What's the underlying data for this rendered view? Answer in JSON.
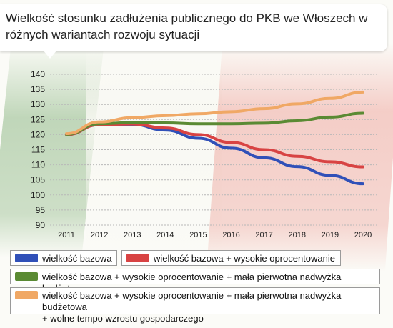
{
  "title": "Wielkość stosunku zadłużenia publicznego do PKB we Włoszech w różnych wariantach rozwoju sytuacji",
  "chart_data": {
    "type": "line",
    "title": "Wielkość stosunku zadłużenia publicznego do PKB we Włoszech w różnych wariantach rozwoju sytuacji",
    "xlabel": "",
    "ylabel": "",
    "x": [
      "2011",
      "2012",
      "2013",
      "2014",
      "2015",
      "2016",
      "2017",
      "2018",
      "2019",
      "2020"
    ],
    "ylim": [
      90,
      140
    ],
    "yticks": [
      90,
      95,
      100,
      105,
      110,
      115,
      120,
      125,
      130,
      135,
      140
    ],
    "grid": true,
    "legend": "bottom",
    "series": [
      {
        "name": "wielkość bazowa",
        "color": "#3050b8",
        "values": [
          120,
          123.3,
          123.4,
          121.5,
          118.8,
          115.5,
          112.3,
          109.4,
          106.5,
          103.7
        ]
      },
      {
        "name": "wielkość bazowa + wysokie oprocentowanie",
        "color": "#d84343",
        "values": [
          120,
          123.3,
          123.5,
          122.2,
          120.0,
          117.4,
          115.0,
          112.8,
          111.0,
          109.3
        ]
      },
      {
        "name": "wielkość bazowa + wysokie oprocentowanie + mała pierwotna nadwyżka budżetowa",
        "color": "#5a8a33",
        "values": [
          120.1,
          123.6,
          124.0,
          123.9,
          123.6,
          123.6,
          123.8,
          124.6,
          125.8,
          127.1
        ]
      },
      {
        "name": "wielkość bazowa + wysokie oprocentowanie + mała pierwotna nadwyżka budżetowa + wolne tempo wzrostu gospodarczego",
        "color": "#f0a865",
        "values": [
          120.3,
          124.2,
          125.6,
          126.3,
          126.9,
          127.6,
          128.6,
          130.2,
          132.0,
          134.1
        ]
      }
    ]
  },
  "legend": {
    "items": [
      {
        "label": "wielkość bazowa",
        "color": "#3050b8"
      },
      {
        "label": "wielkość bazowa + wysokie oprocentowanie",
        "color": "#d84343"
      },
      {
        "label": "wielkość bazowa + wysokie oprocentowanie + mała pierwotna nadwyżka budżetowa",
        "color": "#5a8a33"
      },
      {
        "label": "wielkość bazowa + wysokie oprocentowanie + mała pierwotna nadwyżka budżetowa\n+ wolne tempo wzrostu gospodarczego",
        "color": "#f0a865"
      }
    ]
  }
}
